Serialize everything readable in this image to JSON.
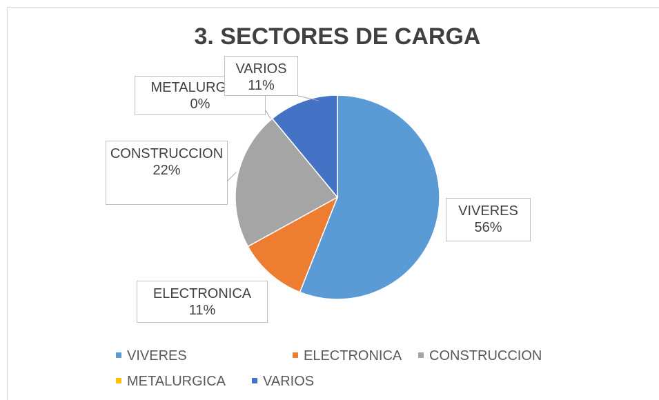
{
  "chart_data": {
    "type": "pie",
    "title": "3. SECTORES DE CARGA",
    "categories": [
      "VIVERES",
      "ELECTRONICA",
      "CONSTRUCCION",
      "METALURGICA",
      "VARIOS"
    ],
    "values": [
      56,
      11,
      22,
      0,
      11
    ],
    "value_labels": [
      "56%",
      "11%",
      "22%",
      "0%",
      "11%"
    ],
    "colors": [
      "#5b9bd5",
      "#ed7d31",
      "#a5a5a5",
      "#ffc000",
      "#4472c4"
    ],
    "legend": "bottom"
  }
}
